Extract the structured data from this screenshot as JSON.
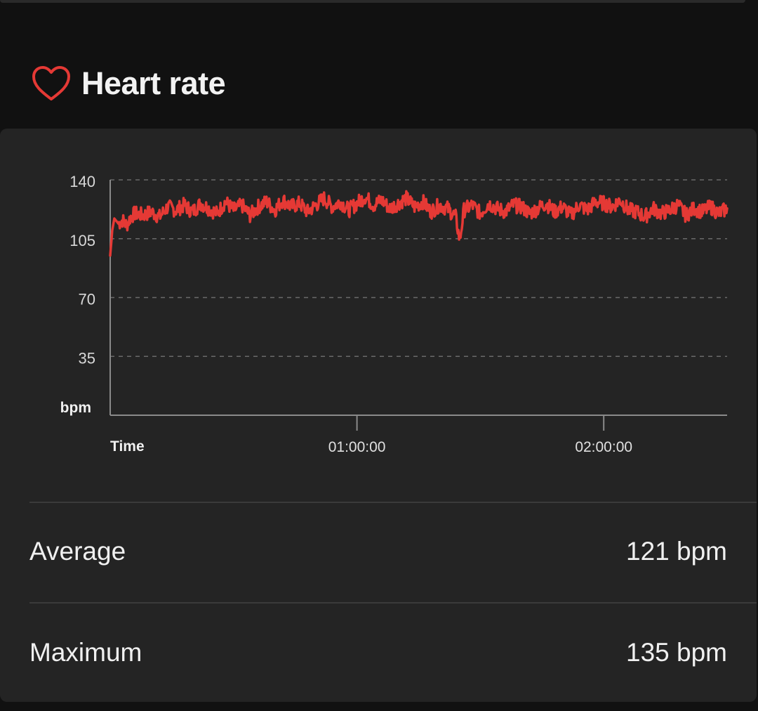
{
  "section": {
    "title": "Heart rate",
    "icon": "heart-outline-icon",
    "accent_color": "#e53935"
  },
  "chart_data": {
    "type": "line",
    "title": "",
    "xlabel": "Time",
    "ylabel": "bpm",
    "ylim": [
      0,
      140
    ],
    "yticks": [
      140,
      105,
      70,
      35
    ],
    "xlim": [
      "00:00:00",
      "02:30:00"
    ],
    "xticks": [
      "01:00:00",
      "02:00:00"
    ],
    "grid": "horizontal dashed",
    "series": [
      {
        "color": "#e53935",
        "x_unit": "minutes",
        "x": [
          0,
          0.5,
          1,
          2,
          3,
          4,
          5,
          6,
          8,
          10,
          12,
          14,
          16,
          18,
          20,
          22,
          24,
          26,
          28,
          30,
          32,
          34,
          36,
          38,
          40,
          42,
          44,
          46,
          48,
          50,
          52,
          54,
          56,
          58,
          60,
          62,
          64,
          66,
          68,
          70,
          72,
          74,
          76,
          78,
          80,
          82,
          84,
          85,
          86,
          88,
          90,
          92,
          94,
          96,
          98,
          100,
          102,
          104,
          106,
          108,
          110,
          112,
          114,
          116,
          118,
          120,
          122,
          124,
          126,
          128,
          130,
          132,
          134,
          136,
          138,
          140,
          142,
          144,
          146,
          148,
          150
        ],
        "values": [
          95,
          110,
          117,
          114,
          116,
          113,
          118,
          120,
          119,
          121,
          118,
          124,
          122,
          125,
          121,
          126,
          123,
          120,
          127,
          122,
          125,
          119,
          124,
          127,
          122,
          128,
          124,
          126,
          121,
          125,
          129,
          124,
          127,
          122,
          126,
          130,
          125,
          128,
          123,
          126,
          129,
          124,
          127,
          121,
          125,
          123,
          118,
          104,
          122,
          125,
          120,
          126,
          123,
          121,
          125,
          124,
          120,
          123,
          126,
          121,
          124,
          119,
          125,
          122,
          127,
          126,
          124,
          128,
          122,
          121,
          118,
          123,
          120,
          122,
          125,
          119,
          123,
          121,
          124,
          120,
          123
        ]
      }
    ]
  },
  "stats": [
    {
      "label": "Average",
      "value": "121 bpm"
    },
    {
      "label": "Maximum",
      "value": "135 bpm"
    }
  ]
}
